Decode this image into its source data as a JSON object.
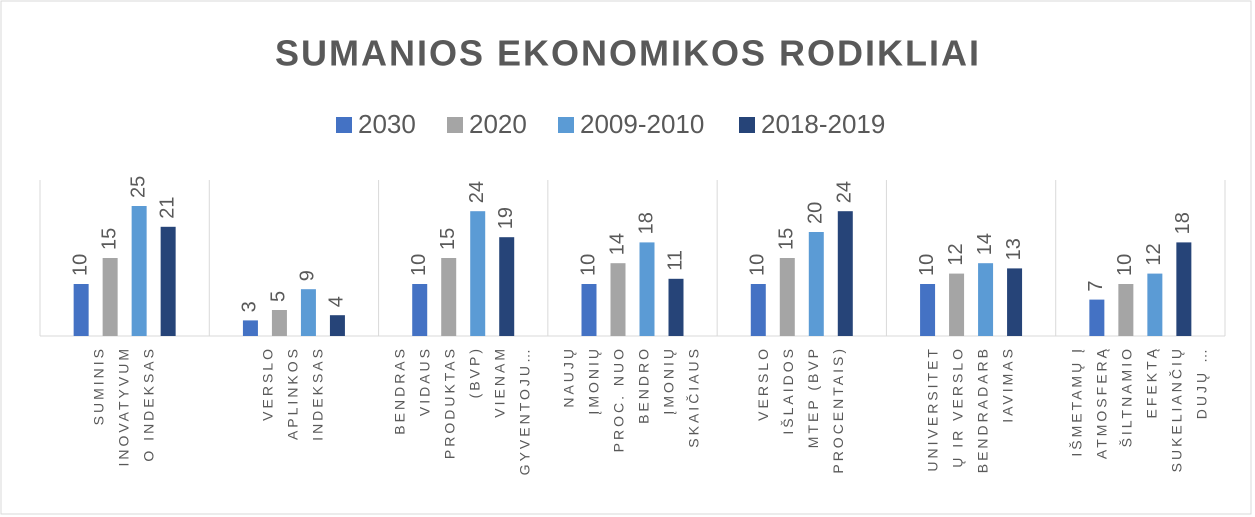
{
  "chart_data": {
    "type": "bar",
    "title": "SUMANIOS EKONOMIKOS RODIKLIAI",
    "categories": [
      [
        "SUMINIS",
        "INOVATYVUM",
        "O INDEKSAS"
      ],
      [
        "VERSLO",
        "APLINKOS",
        "INDEKSAS"
      ],
      [
        "BENDRAS",
        "VIDAUS",
        "PRODUKTAS",
        "(BVP)",
        "VIENAM",
        "GYVENTOJU…"
      ],
      [
        "NAUJŲ",
        "ĮMONIŲ",
        "PROC. NUO",
        "BENDRO",
        "ĮMONIŲ",
        "SKAIČIAUS"
      ],
      [
        "VERSLO",
        "IŠLAIDOS",
        "MTEP (BVP",
        "PROCENTAIS)"
      ],
      [
        "UNIVERSITET",
        "Ų IR VERSLO",
        "BENDRADARB",
        "IAVIMAS"
      ],
      [
        "IŠMETAMŲ Į",
        "ATMOSFERĄ",
        "ŠILTNAMIO",
        "EFEKTĄ",
        "SUKELIANČIŲ",
        "DUJŲ …"
      ]
    ],
    "series": [
      {
        "name": "2030",
        "color": "#4472c4",
        "values": [
          10,
          3,
          10,
          10,
          10,
          10,
          7
        ]
      },
      {
        "name": "2020",
        "color": "#a5a5a5",
        "values": [
          15,
          5,
          15,
          14,
          15,
          12,
          10
        ]
      },
      {
        "name": "2009-2010",
        "color": "#5b9bd5",
        "values": [
          25,
          9,
          24,
          18,
          20,
          14,
          12
        ]
      },
      {
        "name": "2018-2019",
        "color": "#264478",
        "values": [
          21,
          4,
          19,
          11,
          24,
          13,
          18
        ]
      }
    ],
    "ylim": [
      0,
      30
    ],
    "legend": "top"
  }
}
